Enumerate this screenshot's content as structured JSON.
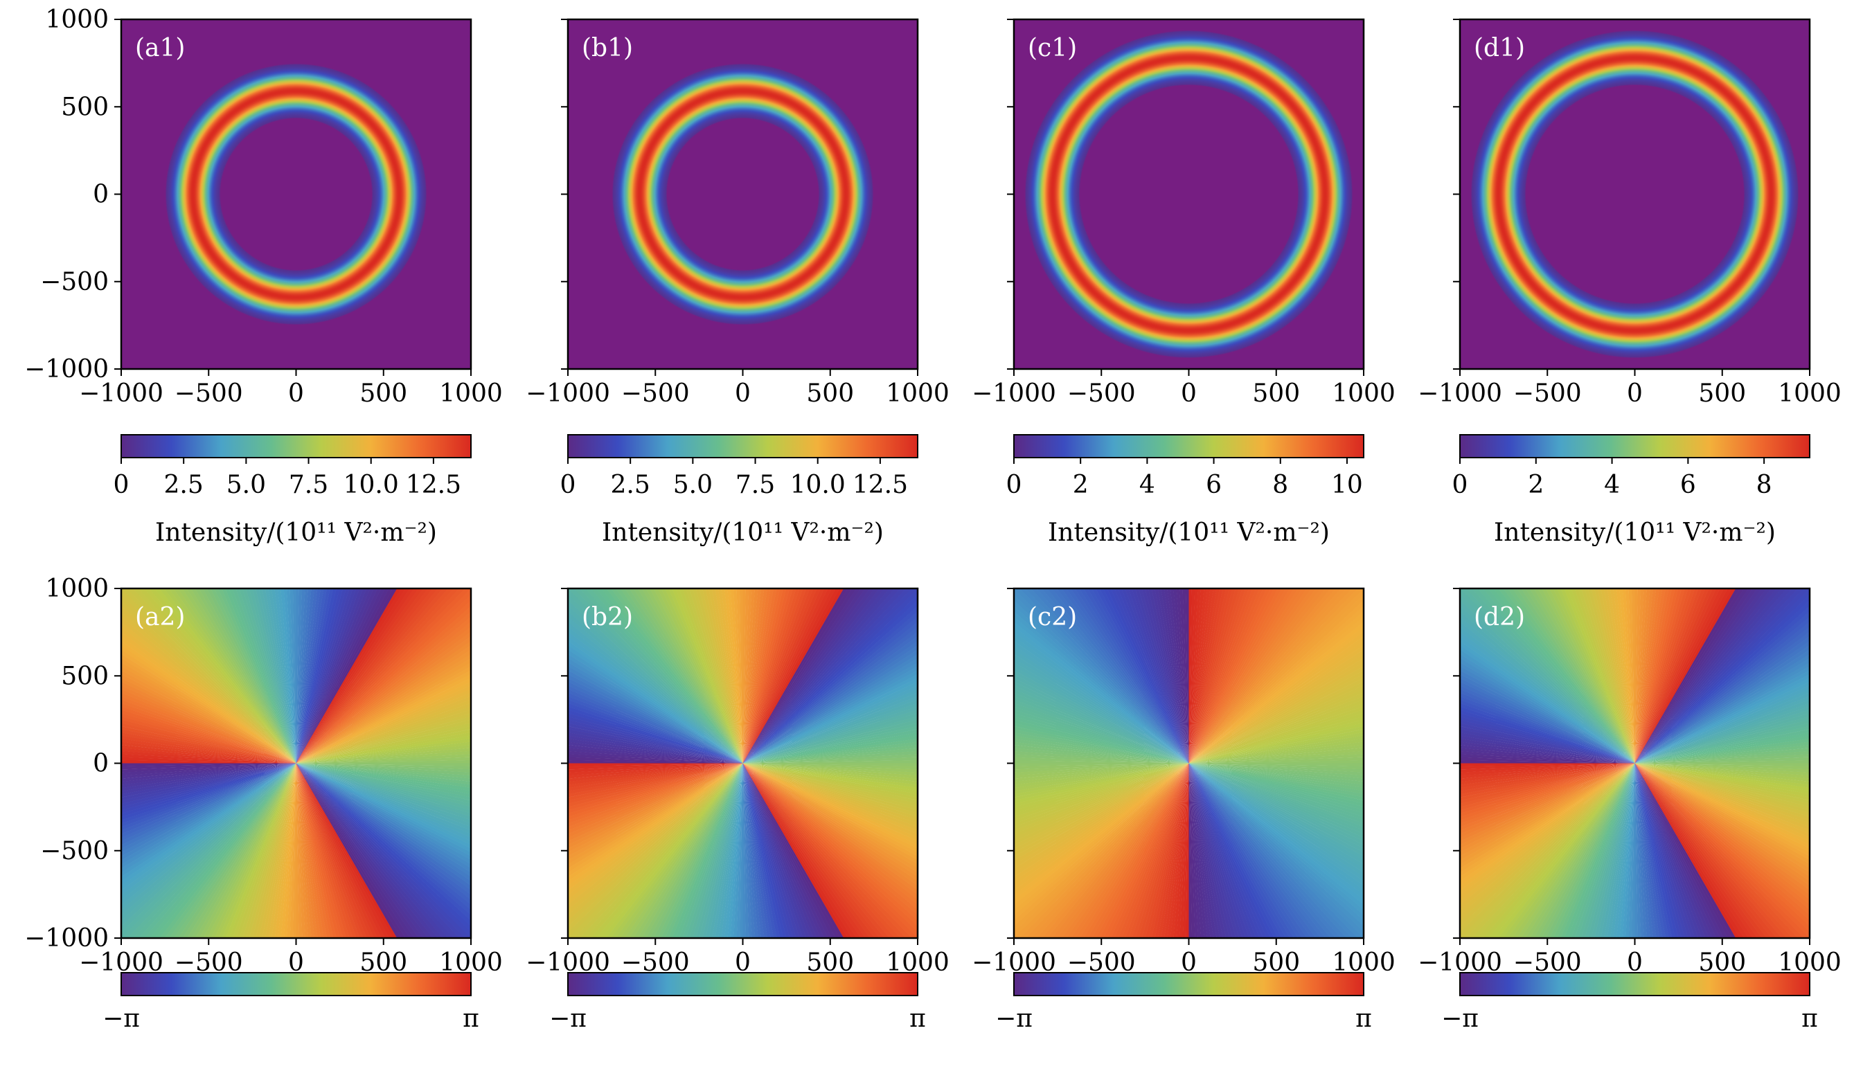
{
  "chart_data": {
    "type": "heatmap",
    "colormap": "spectral-like (purple, blue, teal, green, yellow, orange, red)",
    "colors": [
      "#5b2a86",
      "#3b4cc0",
      "#4aa3c8",
      "#67bd8f",
      "#b8cc4a",
      "#f2b13b",
      "#ef6a2e",
      "#d92920"
    ],
    "background_color": "#761e82",
    "intensity_panels": [
      {
        "label": "(a1)",
        "xlim": [
          -1000,
          1000
        ],
        "ylim": [
          -1000,
          1000
        ],
        "xticks": [
          -1000,
          -500,
          0,
          500,
          1000
        ],
        "yticks": [
          -1000,
          -500,
          0,
          500,
          1000
        ],
        "ring_radius": 590,
        "ring_width": 80,
        "cbar_range": [
          0,
          14
        ],
        "cbar_ticks": [
          0,
          2.5,
          5.0,
          7.5,
          10.0,
          12.5
        ],
        "cbar_tick_labels": [
          "0",
          "2.5",
          "5.0",
          "7.5",
          "10.0",
          "12.5"
        ],
        "cbar_label": "Intensity/(10¹¹ V²·m⁻²)"
      },
      {
        "label": "(b1)",
        "xlim": [
          -1000,
          1000
        ],
        "ylim": [
          -1000,
          1000
        ],
        "xticks": [
          -1000,
          -500,
          0,
          500,
          1000
        ],
        "yticks": [
          -1000,
          -500,
          0,
          500,
          1000
        ],
        "ring_radius": 590,
        "ring_width": 80,
        "cbar_range": [
          0,
          14
        ],
        "cbar_ticks": [
          0,
          2.5,
          5.0,
          7.5,
          10.0,
          12.5
        ],
        "cbar_tick_labels": [
          "0",
          "2.5",
          "5.0",
          "7.5",
          "10.0",
          "12.5"
        ],
        "cbar_label": "Intensity/(10¹¹ V²·m⁻²)"
      },
      {
        "label": "(c1)",
        "xlim": [
          -1000,
          1000
        ],
        "ylim": [
          -1000,
          1000
        ],
        "xticks": [
          -1000,
          -500,
          0,
          500,
          1000
        ],
        "yticks": [
          -1000,
          -500,
          0,
          500,
          1000
        ],
        "ring_radius": 780,
        "ring_width": 80,
        "cbar_range": [
          0,
          10.5
        ],
        "cbar_ticks": [
          0,
          2,
          4,
          6,
          8,
          10
        ],
        "cbar_tick_labels": [
          "0",
          "2",
          "4",
          "6",
          "8",
          "10"
        ],
        "cbar_label": "Intensity/(10¹¹ V²·m⁻²)"
      },
      {
        "label": "(d1)",
        "xlim": [
          -1000,
          1000
        ],
        "ylim": [
          -1000,
          1000
        ],
        "xticks": [
          -1000,
          -500,
          0,
          500,
          1000
        ],
        "yticks": [
          -1000,
          -500,
          0,
          500,
          1000
        ],
        "ring_radius": 780,
        "ring_width": 80,
        "cbar_range": [
          0,
          9.2
        ],
        "cbar_ticks": [
          0,
          2,
          4,
          6,
          8
        ],
        "cbar_tick_labels": [
          "0",
          "2",
          "4",
          "6",
          "8"
        ],
        "cbar_label": "Intensity/(10¹¹ V²·m⁻²)"
      }
    ],
    "phase_panels": [
      {
        "label": "(a2)",
        "xlim": [
          -1000,
          1000
        ],
        "ylim": [
          -1000,
          1000
        ],
        "xticks": [
          -1000,
          -500,
          0,
          500,
          1000
        ],
        "yticks": [
          -1000,
          -500,
          0,
          500,
          1000
        ],
        "topological_charge": 3,
        "phase_offset_deg": 0,
        "cbar_tick_labels": [
          "−π",
          "π"
        ]
      },
      {
        "label": "(b2)",
        "xlim": [
          -1000,
          1000
        ],
        "ylim": [
          -1000,
          1000
        ],
        "xticks": [
          -1000,
          -500,
          0,
          500,
          1000
        ],
        "yticks": [
          -1000,
          -500,
          0,
          500,
          1000
        ],
        "topological_charge": -3,
        "phase_offset_deg": 0,
        "cbar_tick_labels": [
          "−π",
          "π"
        ]
      },
      {
        "label": "(c2)",
        "xlim": [
          -1000,
          1000
        ],
        "ylim": [
          -1000,
          1000
        ],
        "xticks": [
          -1000,
          -500,
          0,
          500,
          1000
        ],
        "yticks": [
          -1000,
          -500,
          0,
          500,
          1000
        ],
        "topological_charge": 2,
        "phase_offset_deg": 0,
        "cbar_tick_labels": [
          "−π",
          "π"
        ]
      },
      {
        "label": "(d2)",
        "xlim": [
          -1000,
          1000
        ],
        "ylim": [
          -1000,
          1000
        ],
        "xticks": [
          -1000,
          -500,
          0,
          500,
          1000
        ],
        "yticks": [
          -1000,
          -500,
          0,
          500,
          1000
        ],
        "topological_charge": -3,
        "phase_offset_deg": 0,
        "cbar_tick_labels": [
          "−π",
          "π"
        ]
      }
    ]
  }
}
